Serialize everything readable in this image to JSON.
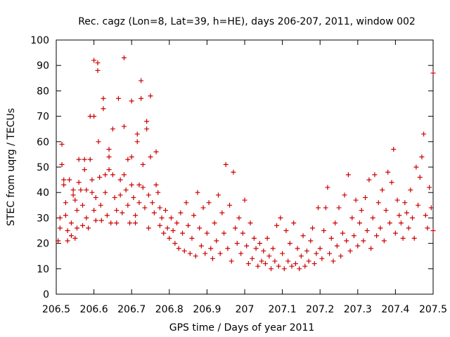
{
  "chart_data": {
    "type": "scatter",
    "title": "Rec. cagz (Lon=8, Lat=39, h=HE), days 206-207, 2011, window 002",
    "xlabel": "GPS time / Days of year 2011",
    "ylabel": "STEC from uqrg / TECUs",
    "xlim": [
      206.5,
      207.5
    ],
    "ylim": [
      0,
      100
    ],
    "xticks": [
      206.5,
      206.6,
      206.7,
      206.8,
      206.9,
      207,
      207.1,
      207.2,
      207.3,
      207.4,
      207.5
    ],
    "xtick_labels": [
      "206.5",
      "206.6",
      "206.7",
      "206.8",
      "206.9",
      "207",
      "207.1",
      "207.2",
      "207.3",
      "207.4",
      "207.5"
    ],
    "yticks": [
      0,
      10,
      20,
      30,
      40,
      50,
      60,
      70,
      80,
      90,
      100
    ],
    "ytick_labels": [
      "0",
      "10",
      "20",
      "30",
      "40",
      "50",
      "60",
      "70",
      "80",
      "90",
      "100"
    ],
    "marker": "+",
    "color": "#cc0000",
    "grid": false,
    "series": [
      {
        "name": "STEC",
        "points": [
          [
            206.505,
            21
          ],
          [
            206.51,
            30
          ],
          [
            206.51,
            26
          ],
          [
            206.515,
            59
          ],
          [
            206.515,
            51
          ],
          [
            206.52,
            45
          ],
          [
            206.52,
            43
          ],
          [
            206.525,
            36
          ],
          [
            206.525,
            31
          ],
          [
            206.53,
            25
          ],
          [
            206.53,
            21
          ],
          [
            206.535,
            45
          ],
          [
            206.54,
            28
          ],
          [
            206.54,
            23
          ],
          [
            206.545,
            41
          ],
          [
            206.545,
            39
          ],
          [
            206.55,
            37
          ],
          [
            206.55,
            22
          ],
          [
            206.555,
            33
          ],
          [
            206.555,
            26
          ],
          [
            206.56,
            53
          ],
          [
            206.56,
            44
          ],
          [
            206.565,
            41
          ],
          [
            206.57,
            35
          ],
          [
            206.57,
            27
          ],
          [
            206.575,
            53
          ],
          [
            206.575,
            49
          ],
          [
            206.58,
            41
          ],
          [
            206.58,
            30
          ],
          [
            206.585,
            26
          ],
          [
            206.59,
            70
          ],
          [
            206.59,
            53
          ],
          [
            206.595,
            45
          ],
          [
            206.595,
            40
          ],
          [
            206.6,
            92
          ],
          [
            206.6,
            70
          ],
          [
            206.6,
            33
          ],
          [
            206.605,
            38
          ],
          [
            206.605,
            29
          ],
          [
            206.61,
            91
          ],
          [
            206.61,
            88
          ],
          [
            206.612,
            60
          ],
          [
            206.615,
            46
          ],
          [
            206.618,
            35
          ],
          [
            206.62,
            29
          ],
          [
            206.625,
            77
          ],
          [
            206.625,
            73
          ],
          [
            206.63,
            47
          ],
          [
            206.63,
            40
          ],
          [
            206.635,
            31
          ],
          [
            206.64,
            57
          ],
          [
            206.64,
            54
          ],
          [
            206.64,
            49
          ],
          [
            206.645,
            28
          ],
          [
            206.65,
            65
          ],
          [
            206.65,
            47
          ],
          [
            206.655,
            38
          ],
          [
            206.66,
            33
          ],
          [
            206.66,
            28
          ],
          [
            206.665,
            77
          ],
          [
            206.67,
            45
          ],
          [
            206.67,
            39
          ],
          [
            206.675,
            32
          ],
          [
            206.68,
            93
          ],
          [
            206.68,
            66
          ],
          [
            206.68,
            47
          ],
          [
            206.685,
            41
          ],
          [
            206.69,
            53
          ],
          [
            206.69,
            35
          ],
          [
            206.695,
            28
          ],
          [
            206.7,
            76
          ],
          [
            206.7,
            54
          ],
          [
            206.7,
            43
          ],
          [
            206.705,
            38
          ],
          [
            206.71,
            31
          ],
          [
            206.71,
            28
          ],
          [
            206.715,
            63
          ],
          [
            206.715,
            60
          ],
          [
            206.72,
            43
          ],
          [
            206.72,
            36
          ],
          [
            206.725,
            77
          ],
          [
            206.725,
            84
          ],
          [
            206.73,
            51
          ],
          [
            206.73,
            42
          ],
          [
            206.735,
            34
          ],
          [
            206.74,
            65
          ],
          [
            206.74,
            68
          ],
          [
            206.745,
            39
          ],
          [
            206.745,
            26
          ],
          [
            206.75,
            78
          ],
          [
            206.75,
            54
          ],
          [
            206.755,
            36
          ],
          [
            206.76,
            32
          ],
          [
            206.765,
            43
          ],
          [
            206.765,
            56
          ],
          [
            206.77,
            40
          ],
          [
            206.775,
            34
          ],
          [
            206.775,
            27
          ],
          [
            206.78,
            30
          ],
          [
            206.785,
            24
          ],
          [
            206.79,
            33
          ],
          [
            206.795,
            26
          ],
          [
            206.8,
            22
          ],
          [
            206.805,
            30
          ],
          [
            206.81,
            25
          ],
          [
            206.815,
            20
          ],
          [
            206.82,
            28
          ],
          [
            206.825,
            18
          ],
          [
            206.83,
            32
          ],
          [
            206.835,
            24
          ],
          [
            206.84,
            17
          ],
          [
            206.845,
            36
          ],
          [
            206.85,
            27
          ],
          [
            206.855,
            16
          ],
          [
            206.86,
            22
          ],
          [
            206.865,
            31
          ],
          [
            206.87,
            15
          ],
          [
            206.875,
            40
          ],
          [
            206.88,
            26
          ],
          [
            206.885,
            19
          ],
          [
            206.89,
            34
          ],
          [
            206.895,
            16
          ],
          [
            206.9,
            24
          ],
          [
            206.905,
            36
          ],
          [
            206.91,
            18
          ],
          [
            206.915,
            14
          ],
          [
            206.92,
            28
          ],
          [
            206.925,
            21
          ],
          [
            206.93,
            39
          ],
          [
            206.935,
            16
          ],
          [
            206.94,
            32
          ],
          [
            206.945,
            24
          ],
          [
            206.95,
            51
          ],
          [
            206.955,
            18
          ],
          [
            206.96,
            35
          ],
          [
            206.965,
            13
          ],
          [
            206.97,
            48
          ],
          [
            206.975,
            26
          ],
          [
            206.98,
            20
          ],
          [
            206.985,
            30
          ],
          [
            206.99,
            16
          ],
          [
            206.995,
            24
          ],
          [
            207.0,
            37
          ],
          [
            207.005,
            19
          ],
          [
            207.01,
            12
          ],
          [
            207.015,
            28
          ],
          [
            207.02,
            14
          ],
          [
            207.025,
            22
          ],
          [
            207.03,
            18
          ],
          [
            207.035,
            11
          ],
          [
            207.04,
            20
          ],
          [
            207.045,
            13
          ],
          [
            207.05,
            17
          ],
          [
            207.055,
            12
          ],
          [
            207.06,
            22
          ],
          [
            207.065,
            15
          ],
          [
            207.07,
            10
          ],
          [
            207.075,
            18
          ],
          [
            207.08,
            13
          ],
          [
            207.085,
            27
          ],
          [
            207.09,
            11
          ],
          [
            207.095,
            30
          ],
          [
            207.1,
            16
          ],
          [
            207.105,
            10
          ],
          [
            207.11,
            25
          ],
          [
            207.115,
            13
          ],
          [
            207.12,
            20
          ],
          [
            207.125,
            11
          ],
          [
            207.13,
            28
          ],
          [
            207.135,
            12
          ],
          [
            207.14,
            18
          ],
          [
            207.145,
            10
          ],
          [
            207.15,
            15
          ],
          [
            207.155,
            23
          ],
          [
            207.16,
            11
          ],
          [
            207.165,
            17
          ],
          [
            207.17,
            13
          ],
          [
            207.175,
            21
          ],
          [
            207.18,
            26
          ],
          [
            207.185,
            12
          ],
          [
            207.19,
            16
          ],
          [
            207.195,
            34
          ],
          [
            207.2,
            18
          ],
          [
            207.205,
            14
          ],
          [
            207.21,
            25
          ],
          [
            207.215,
            34
          ],
          [
            207.22,
            42
          ],
          [
            207.225,
            16
          ],
          [
            207.23,
            22
          ],
          [
            207.235,
            13
          ],
          [
            207.24,
            28
          ],
          [
            207.245,
            19
          ],
          [
            207.25,
            34
          ],
          [
            207.255,
            15
          ],
          [
            207.26,
            24
          ],
          [
            207.265,
            39
          ],
          [
            207.27,
            21
          ],
          [
            207.275,
            47
          ],
          [
            207.28,
            17
          ],
          [
            207.285,
            30
          ],
          [
            207.29,
            23
          ],
          [
            207.295,
            37
          ],
          [
            207.3,
            19
          ],
          [
            207.305,
            28
          ],
          [
            207.31,
            33
          ],
          [
            207.315,
            21
          ],
          [
            207.32,
            38
          ],
          [
            207.325,
            25
          ],
          [
            207.33,
            45
          ],
          [
            207.335,
            18
          ],
          [
            207.34,
            30
          ],
          [
            207.345,
            47
          ],
          [
            207.35,
            23
          ],
          [
            207.355,
            36
          ],
          [
            207.36,
            26
          ],
          [
            207.365,
            41
          ],
          [
            207.37,
            21
          ],
          [
            207.375,
            33
          ],
          [
            207.38,
            48
          ],
          [
            207.385,
            28
          ],
          [
            207.39,
            44
          ],
          [
            207.395,
            57
          ],
          [
            207.4,
            24
          ],
          [
            207.405,
            37
          ],
          [
            207.41,
            31
          ],
          [
            207.415,
            28
          ],
          [
            207.42,
            22
          ],
          [
            207.425,
            36
          ],
          [
            207.43,
            32
          ],
          [
            207.435,
            26
          ],
          [
            207.44,
            41
          ],
          [
            207.445,
            30
          ],
          [
            207.45,
            22
          ],
          [
            207.455,
            50
          ],
          [
            207.46,
            35
          ],
          [
            207.465,
            46
          ],
          [
            207.47,
            54
          ],
          [
            207.475,
            63
          ],
          [
            207.48,
            31
          ],
          [
            207.485,
            26
          ],
          [
            207.49,
            42
          ],
          [
            207.495,
            34
          ],
          [
            207.5,
            87
          ],
          [
            207.5,
            25
          ]
        ]
      }
    ]
  }
}
